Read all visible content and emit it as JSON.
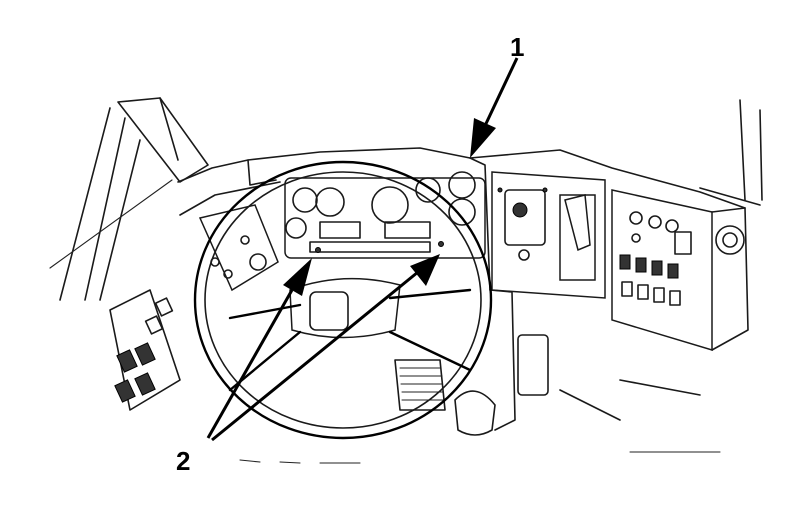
{
  "callouts": {
    "one": "1",
    "two": "2"
  },
  "colors": {
    "ink": "#000000",
    "paper": "#ffffff"
  }
}
